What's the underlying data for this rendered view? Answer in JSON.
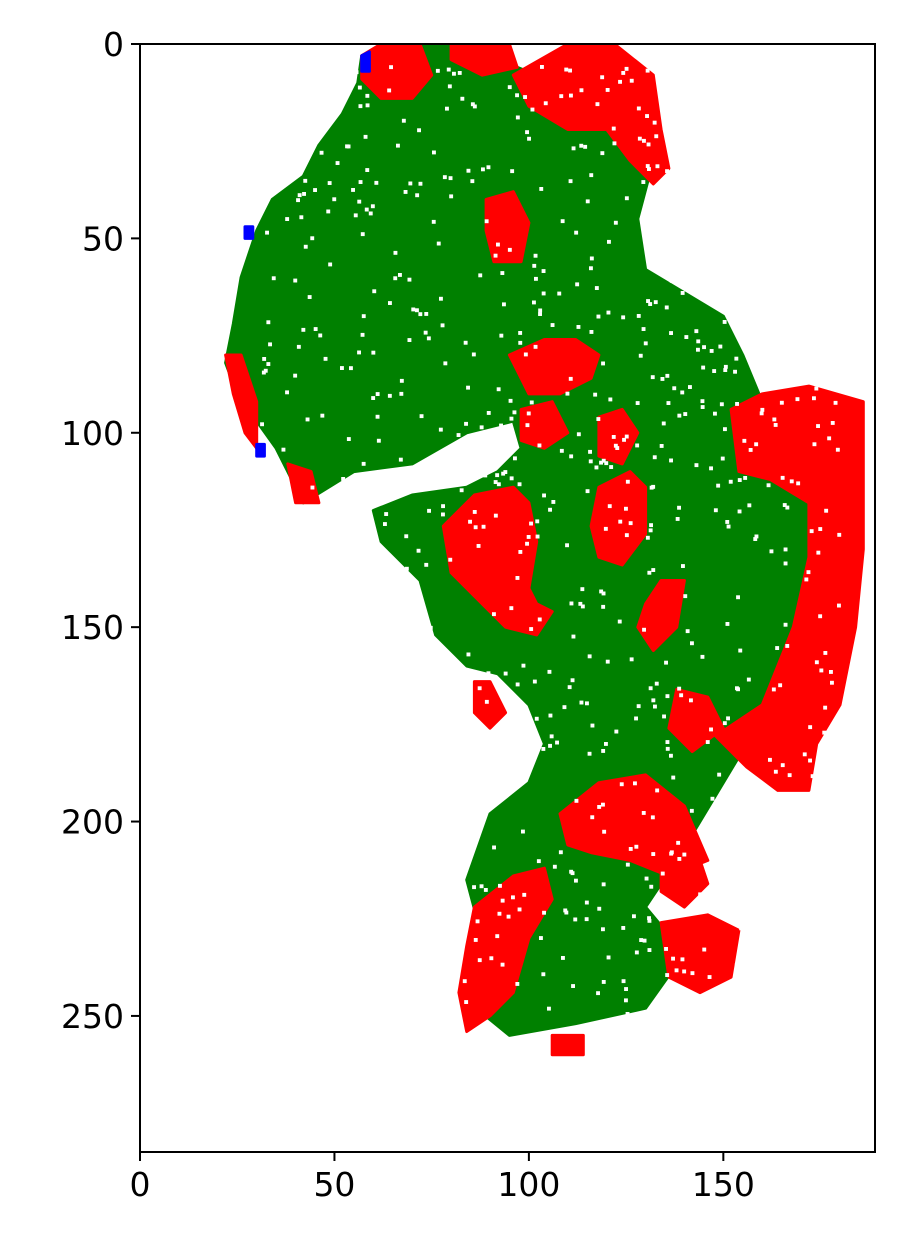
{
  "chart_data": {
    "type": "heatmap",
    "title": "",
    "xlabel": "",
    "ylabel": "",
    "xlim": [
      0,
      189
    ],
    "ylim": [
      285,
      0
    ],
    "x_ticks": [
      0,
      50,
      100,
      150
    ],
    "y_ticks": [
      0,
      50,
      100,
      150,
      200,
      250
    ],
    "x_tick_labels": [
      "0",
      "50",
      "100",
      "150"
    ],
    "y_tick_labels": [
      "0",
      "50",
      "100",
      "150",
      "200",
      "250"
    ],
    "grid": false,
    "legend": "none",
    "colors": {
      "class_green": "#008000",
      "class_red": "#ff0000",
      "class_blue": "#0000ff",
      "background": "#ffffff"
    },
    "regions": [
      {
        "color": "green",
        "polygon": [
          [
            57,
            3
          ],
          [
            66,
            0
          ],
          [
            82,
            0
          ],
          [
            92,
            4
          ],
          [
            102,
            8
          ],
          [
            110,
            14
          ],
          [
            118,
            8
          ],
          [
            130,
            14
          ],
          [
            132,
            30
          ],
          [
            128,
            45
          ],
          [
            130,
            58
          ],
          [
            140,
            64
          ],
          [
            150,
            70
          ],
          [
            155,
            80
          ],
          [
            160,
            92
          ],
          [
            170,
            100
          ],
          [
            182,
            108
          ],
          [
            184,
            122
          ],
          [
            178,
            132
          ],
          [
            172,
            150
          ],
          [
            162,
            170
          ],
          [
            150,
            190
          ],
          [
            138,
            210
          ],
          [
            130,
            222
          ],
          [
            140,
            234
          ],
          [
            130,
            248
          ],
          [
            112,
            252
          ],
          [
            95,
            255
          ],
          [
            84,
            246
          ],
          [
            88,
            230
          ],
          [
            84,
            215
          ],
          [
            90,
            198
          ],
          [
            100,
            190
          ],
          [
            104,
            180
          ],
          [
            100,
            170
          ],
          [
            92,
            162
          ],
          [
            84,
            160
          ],
          [
            76,
            152
          ],
          [
            72,
            138
          ],
          [
            62,
            128
          ],
          [
            60,
            120
          ],
          [
            70,
            116
          ],
          [
            84,
            114
          ],
          [
            92,
            110
          ],
          [
            98,
            104
          ],
          [
            96,
            97
          ],
          [
            84,
            100
          ],
          [
            70,
            108
          ],
          [
            55,
            110
          ],
          [
            42,
            118
          ],
          [
            38,
            110
          ],
          [
            35,
            104
          ],
          [
            30,
            97
          ],
          [
            25,
            90
          ],
          [
            22,
            82
          ],
          [
            24,
            72
          ],
          [
            26,
            60
          ],
          [
            30,
            48
          ],
          [
            34,
            40
          ],
          [
            42,
            34
          ],
          [
            46,
            26
          ],
          [
            52,
            18
          ],
          [
            56,
            10
          ]
        ]
      },
      {
        "color": "red",
        "polygon": [
          [
            57,
            3
          ],
          [
            62,
            0
          ],
          [
            72,
            0
          ],
          [
            75,
            8
          ],
          [
            70,
            14
          ],
          [
            62,
            14
          ],
          [
            57,
            9
          ]
        ]
      },
      {
        "color": "red",
        "polygon": [
          [
            80,
            0
          ],
          [
            95,
            0
          ],
          [
            97,
            6
          ],
          [
            88,
            8
          ],
          [
            80,
            4
          ]
        ]
      },
      {
        "color": "red",
        "polygon": [
          [
            96,
            8
          ],
          [
            110,
            0
          ],
          [
            122,
            0
          ],
          [
            132,
            8
          ],
          [
            134,
            22
          ],
          [
            136,
            32
          ],
          [
            132,
            36
          ],
          [
            126,
            30
          ],
          [
            120,
            22
          ],
          [
            110,
            22
          ],
          [
            100,
            16
          ]
        ]
      },
      {
        "color": "red",
        "polygon": [
          [
            89,
            40
          ],
          [
            96,
            38
          ],
          [
            100,
            46
          ],
          [
            98,
            56
          ],
          [
            91,
            56
          ],
          [
            89,
            48
          ]
        ]
      },
      {
        "color": "red",
        "polygon": [
          [
            95,
            80
          ],
          [
            104,
            76
          ],
          [
            112,
            76
          ],
          [
            118,
            80
          ],
          [
            116,
            86
          ],
          [
            108,
            90
          ],
          [
            100,
            90
          ]
        ]
      },
      {
        "color": "red",
        "polygon": [
          [
            98,
            94
          ],
          [
            106,
            92
          ],
          [
            110,
            100
          ],
          [
            104,
            104
          ],
          [
            98,
            102
          ]
        ]
      },
      {
        "color": "red",
        "polygon": [
          [
            78,
            124
          ],
          [
            86,
            116
          ],
          [
            96,
            114
          ],
          [
            100,
            118
          ],
          [
            102,
            128
          ],
          [
            100,
            140
          ],
          [
            102,
            144
          ],
          [
            106,
            146
          ],
          [
            102,
            152
          ],
          [
            94,
            150
          ],
          [
            86,
            142
          ],
          [
            80,
            136
          ]
        ]
      },
      {
        "color": "red",
        "polygon": [
          [
            118,
            114
          ],
          [
            126,
            110
          ],
          [
            130,
            114
          ],
          [
            130,
            126
          ],
          [
            124,
            134
          ],
          [
            118,
            132
          ],
          [
            116,
            124
          ]
        ]
      },
      {
        "color": "red",
        "polygon": [
          [
            118,
            96
          ],
          [
            124,
            94
          ],
          [
            128,
            100
          ],
          [
            124,
            108
          ],
          [
            118,
            106
          ]
        ]
      },
      {
        "color": "red",
        "polygon": [
          [
            130,
            144
          ],
          [
            134,
            138
          ],
          [
            140,
            138
          ],
          [
            138,
            150
          ],
          [
            132,
            156
          ],
          [
            128,
            150
          ]
        ]
      },
      {
        "color": "red",
        "polygon": [
          [
            86,
            164
          ],
          [
            90,
            164
          ],
          [
            94,
            172
          ],
          [
            90,
            176
          ],
          [
            86,
            172
          ]
        ]
      },
      {
        "color": "red",
        "polygon": [
          [
            152,
            94
          ],
          [
            160,
            90
          ],
          [
            172,
            88
          ],
          [
            186,
            92
          ],
          [
            186,
            110
          ],
          [
            186,
            130
          ],
          [
            184,
            150
          ],
          [
            180,
            170
          ],
          [
            174,
            180
          ],
          [
            172,
            192
          ],
          [
            164,
            192
          ],
          [
            156,
            186
          ],
          [
            148,
            178
          ],
          [
            160,
            170
          ],
          [
            168,
            150
          ],
          [
            172,
            132
          ],
          [
            172,
            118
          ],
          [
            162,
            112
          ],
          [
            154,
            110
          ]
        ]
      },
      {
        "color": "red",
        "polygon": [
          [
            138,
            166
          ],
          [
            146,
            168
          ],
          [
            150,
            176
          ],
          [
            142,
            182
          ],
          [
            136,
            176
          ]
        ]
      },
      {
        "color": "red",
        "polygon": [
          [
            108,
            198
          ],
          [
            118,
            190
          ],
          [
            130,
            188
          ],
          [
            140,
            196
          ],
          [
            146,
            210
          ],
          [
            136,
            214
          ],
          [
            126,
            210
          ],
          [
            116,
            208
          ],
          [
            110,
            206
          ]
        ]
      },
      {
        "color": "red",
        "polygon": [
          [
            134,
            206
          ],
          [
            142,
            204
          ],
          [
            146,
            216
          ],
          [
            140,
            222
          ],
          [
            134,
            218
          ]
        ]
      },
      {
        "color": "red",
        "polygon": [
          [
            86,
            222
          ],
          [
            96,
            214
          ],
          [
            104,
            212
          ],
          [
            106,
            220
          ],
          [
            100,
            230
          ],
          [
            96,
            244
          ],
          [
            90,
            250
          ],
          [
            84,
            254
          ],
          [
            82,
            244
          ],
          [
            84,
            232
          ]
        ]
      },
      {
        "color": "red",
        "polygon": [
          [
            134,
            226
          ],
          [
            146,
            224
          ],
          [
            154,
            228
          ],
          [
            152,
            240
          ],
          [
            144,
            244
          ],
          [
            136,
            240
          ]
        ]
      },
      {
        "color": "red",
        "polygon": [
          [
            106,
            255
          ],
          [
            114,
            255
          ],
          [
            114,
            260
          ],
          [
            106,
            260
          ]
        ]
      },
      {
        "color": "red",
        "polygon": [
          [
            22,
            80
          ],
          [
            26,
            80
          ],
          [
            30,
            92
          ],
          [
            30,
            104
          ],
          [
            27,
            100
          ],
          [
            24,
            90
          ]
        ]
      },
      {
        "color": "red",
        "polygon": [
          [
            38,
            108
          ],
          [
            44,
            110
          ],
          [
            46,
            118
          ],
          [
            40,
            118
          ]
        ]
      },
      {
        "color": "blue",
        "polygon": [
          [
            57,
            3
          ],
          [
            59,
            2
          ],
          [
            59,
            7
          ],
          [
            57,
            7
          ]
        ]
      },
      {
        "color": "blue",
        "polygon": [
          [
            30,
            103
          ],
          [
            32,
            103
          ],
          [
            32,
            106
          ],
          [
            30,
            106
          ]
        ]
      },
      {
        "color": "blue",
        "polygon": [
          [
            27,
            47
          ],
          [
            29,
            47
          ],
          [
            29,
            50
          ],
          [
            27,
            50
          ]
        ]
      }
    ]
  }
}
